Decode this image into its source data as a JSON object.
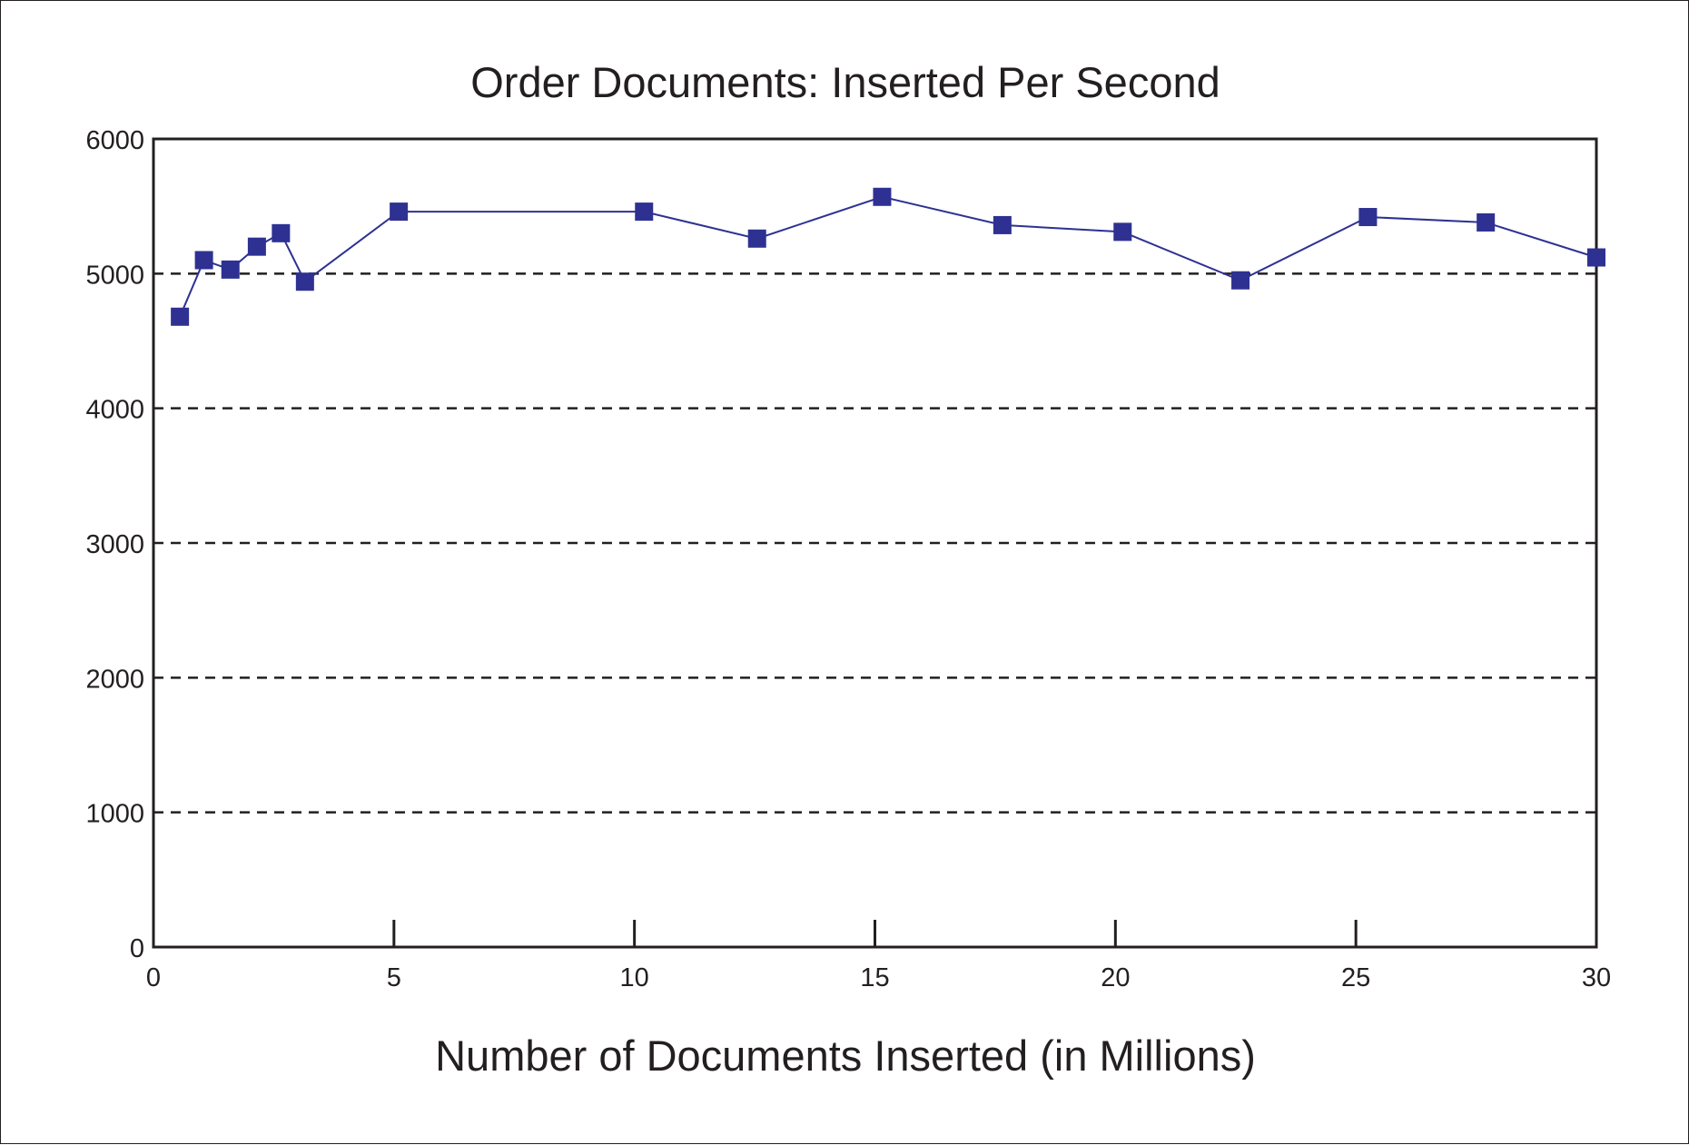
{
  "chart_data": {
    "type": "line",
    "title": "Order Documents: Inserted Per Second",
    "xlabel": "Number of Documents Inserted (in Millions)",
    "ylabel": "",
    "xlim": [
      0,
      30
    ],
    "ylim": [
      0,
      6000
    ],
    "xticks": [
      0,
      5,
      10,
      15,
      20,
      25,
      30
    ],
    "xtick_labels": [
      "0",
      "5",
      "10",
      "15",
      "20",
      "25",
      "30"
    ],
    "yticks": [
      0,
      1000,
      2000,
      3000,
      4000,
      5000,
      6000
    ],
    "ytick_labels": [
      "0",
      "1000",
      "2000",
      "3000",
      "4000",
      "5000",
      "6000"
    ],
    "grid": "horizontal dashed",
    "legend": "none",
    "colors": {
      "series": "#2e3192",
      "axis": "#231f20",
      "grid": "#231f20"
    },
    "series": [
      {
        "marker": "square",
        "x": [
          0.55,
          1.05,
          1.6,
          2.15,
          2.65,
          3.15,
          5.1,
          10.2,
          12.55,
          15.15,
          17.65,
          20.15,
          22.6,
          25.25,
          27.7,
          30.0
        ],
        "y": [
          4680,
          5100,
          5030,
          5200,
          5300,
          4940,
          5460,
          5460,
          5260,
          5570,
          5360,
          5310,
          4950,
          5420,
          5380,
          5120
        ]
      }
    ]
  }
}
